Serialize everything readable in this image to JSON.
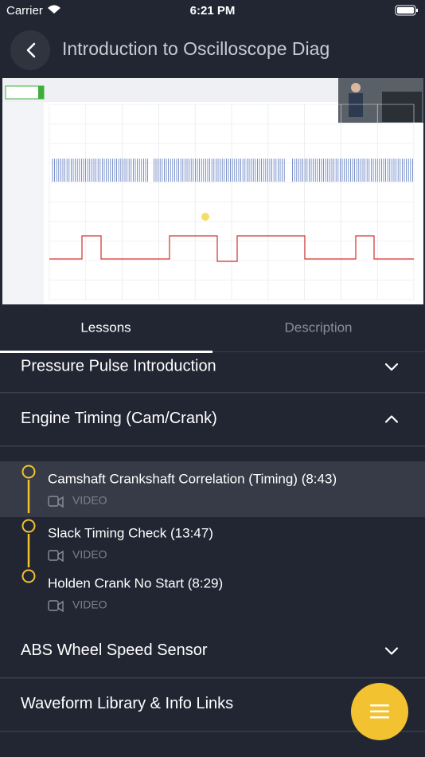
{
  "status_bar": {
    "carrier": "Carrier",
    "time": "6:21 PM"
  },
  "header": {
    "title": "Introduction to Oscilloscope Diag"
  },
  "tabs": [
    "Lessons",
    "Description"
  ],
  "sections": [
    {
      "title": "Pressure Pulse Introduction"
    },
    {
      "title": "Engine Timing (Cam/Crank)",
      "lessons": [
        {
          "title": "Camshaft Crankshaft Correlation (Timing) (8:43)",
          "type": "VIDEO"
        },
        {
          "title": "Slack Timing Check (13:47)",
          "type": "VIDEO"
        },
        {
          "title": "Holden Crank No Start (8:29)",
          "type": "VIDEO"
        }
      ]
    },
    {
      "title": "ABS Wheel Speed Sensor"
    },
    {
      "title": "Waveform Library & Info Links"
    }
  ]
}
